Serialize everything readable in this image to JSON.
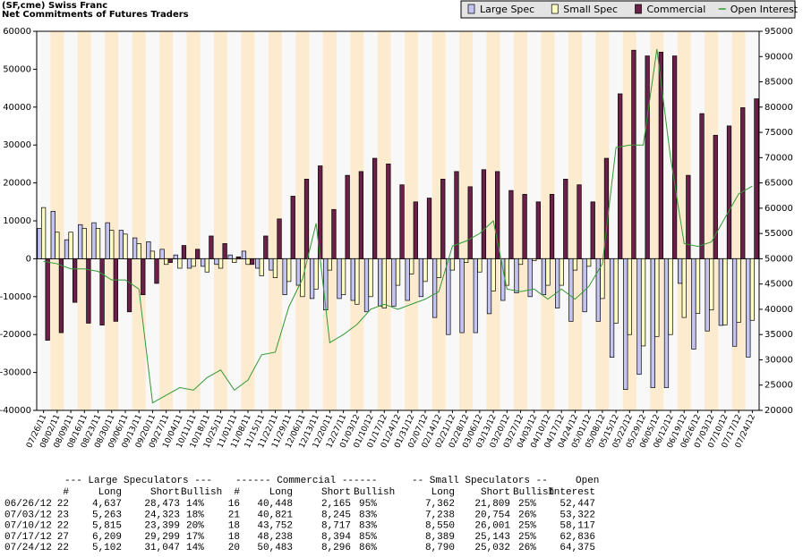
{
  "chart_data": {
    "type": "bar",
    "title": "(SF,cme) Swiss Franc",
    "subtitle": "Net Commitments of Futures Traders",
    "categories": [
      "07/26/11",
      "08/02/11",
      "08/09/11",
      "08/16/11",
      "08/23/11",
      "08/30/11",
      "09/06/11",
      "09/13/11",
      "09/20/11",
      "09/27/11",
      "10/04/11",
      "10/11/11",
      "10/18/11",
      "10/25/11",
      "11/01/11",
      "11/08/11",
      "11/15/11",
      "11/22/11",
      "11/29/11",
      "12/06/11",
      "12/13/11",
      "12/20/11",
      "12/27/11",
      "01/03/12",
      "01/10/12",
      "01/17/12",
      "01/24/12",
      "01/31/12",
      "02/07/12",
      "02/14/12",
      "02/21/12",
      "02/28/12",
      "03/06/12",
      "03/13/12",
      "03/20/12",
      "03/27/12",
      "04/03/12",
      "04/10/12",
      "04/17/12",
      "04/24/12",
      "05/01/12",
      "05/08/12",
      "05/15/12",
      "05/22/12",
      "05/29/12",
      "06/05/12",
      "06/12/12",
      "06/19/12",
      "06/26/12",
      "07/03/12",
      "07/10/12",
      "07/17/12",
      "07/24/12"
    ],
    "series": [
      {
        "name": "Large Spec",
        "color": "#c4c4f2",
        "values": [
          8000,
          12500,
          5000,
          9000,
          9500,
          9500,
          7500,
          5500,
          4500,
          2500,
          1000,
          -2500,
          -2000,
          -1500,
          1000,
          2000,
          -2500,
          -3000,
          -9500,
          -7000,
          -10500,
          -13500,
          -10500,
          -11000,
          -14000,
          -12500,
          -12500,
          -11000,
          -10000,
          -15500,
          -20000,
          -19500,
          -19500,
          -14500,
          -11000,
          -9000,
          -10000,
          -9500,
          -13000,
          -16500,
          -14000,
          -16500,
          -26000,
          -34500,
          -30500,
          -34000,
          -34000,
          -6500,
          -23836,
          -19060,
          -17584,
          -23090,
          -25945
        ]
      },
      {
        "name": "Small Spec",
        "color": "#ffffc4",
        "values": [
          13500,
          7000,
          7000,
          8000,
          8000,
          7500,
          6500,
          4000,
          2000,
          -1500,
          -2500,
          -2000,
          -3500,
          -2500,
          -1000,
          -1500,
          -4500,
          -5000,
          -6000,
          -10000,
          -8000,
          -3000,
          -9500,
          -12000,
          -10000,
          -13000,
          -7000,
          -4000,
          -6000,
          -5000,
          -3000,
          -1000,
          -3500,
          -8500,
          -7000,
          -1500,
          -500,
          -7000,
          -7000,
          -3000,
          -2000,
          -10500,
          -17000,
          -20000,
          -23000,
          -20500,
          -20000,
          -15500,
          -14447,
          -13516,
          -17451,
          -16754,
          -16242
        ]
      },
      {
        "name": "Commercial",
        "color": "#6a2048",
        "values": [
          -21500,
          -19500,
          -11500,
          -17000,
          -17500,
          -16500,
          -14000,
          -9500,
          -6500,
          -1000,
          3500,
          2500,
          6000,
          4000,
          500,
          -1500,
          6000,
          10500,
          16500,
          21000,
          24500,
          13000,
          22000,
          23000,
          26500,
          25000,
          19500,
          15000,
          16000,
          21000,
          23000,
          19000,
          23500,
          23000,
          18000,
          17000,
          15000,
          17000,
          21000,
          19500,
          15000,
          26500,
          43500,
          55000,
          53500,
          54500,
          53500,
          22000,
          38283,
          32576,
          35035,
          39844,
          42187
        ]
      },
      {
        "name": "Open Interest",
        "color": "#339933",
        "axis": "y2",
        "values": [
          49500,
          49000,
          48000,
          48000,
          47500,
          45800,
          45800,
          44000,
          21500,
          23000,
          24500,
          24000,
          26500,
          28000,
          24000,
          26000,
          31000,
          31500,
          40500,
          46000,
          57000,
          33400,
          35000,
          37000,
          40000,
          41000,
          40000,
          41000,
          42000,
          43500,
          52500,
          53500,
          55000,
          57500,
          44000,
          43500,
          44000,
          42000,
          44000,
          42000,
          44500,
          49000,
          72000,
          72500,
          72500,
          91500,
          70000,
          53000,
          52447,
          53322,
          58117,
          62836,
          64375
        ]
      }
    ],
    "ylim": [
      -40000,
      60000
    ],
    "yticks": [
      -40000,
      -30000,
      -20000,
      -10000,
      0,
      10000,
      20000,
      30000,
      40000,
      50000,
      60000
    ],
    "y2lim": [
      20000,
      95000
    ],
    "y2ticks": [
      20000,
      25000,
      30000,
      35000,
      40000,
      45000,
      50000,
      55000,
      60000,
      65000,
      70000,
      75000,
      80000,
      85000,
      90000,
      95000
    ],
    "legend": "top-right"
  },
  "table": {
    "groups": [
      "--- Large Speculators ---",
      "------ Commercial ------",
      "-- Small Speculators --",
      "Open"
    ],
    "columns": [
      "#",
      "Long",
      "Short",
      "Bullish",
      "#",
      "Long",
      "Short",
      "Bullish",
      "Long",
      "Short",
      "Bullish",
      "Interest"
    ],
    "rows": [
      [
        "06/26/12",
        "22",
        "4,637",
        "28,473",
        "14%",
        "16",
        "40,448",
        "2,165",
        "95%",
        "7,362",
        "21,809",
        "25%",
        "52,447"
      ],
      [
        "07/03/12",
        "23",
        "5,263",
        "24,323",
        "18%",
        "21",
        "40,821",
        "8,245",
        "83%",
        "7,238",
        "20,754",
        "26%",
        "53,322"
      ],
      [
        "07/10/12",
        "22",
        "5,815",
        "23,399",
        "20%",
        "18",
        "43,752",
        "8,717",
        "83%",
        "8,550",
        "26,001",
        "25%",
        "58,117"
      ],
      [
        "07/17/12",
        "27",
        "6,209",
        "29,299",
        "17%",
        "18",
        "48,238",
        "8,394",
        "85%",
        "8,389",
        "25,143",
        "25%",
        "62,836"
      ],
      [
        "07/24/12",
        "22",
        "5,102",
        "31,047",
        "14%",
        "20",
        "50,483",
        "8,296",
        "86%",
        "8,790",
        "25,032",
        "26%",
        "64,375"
      ]
    ]
  }
}
